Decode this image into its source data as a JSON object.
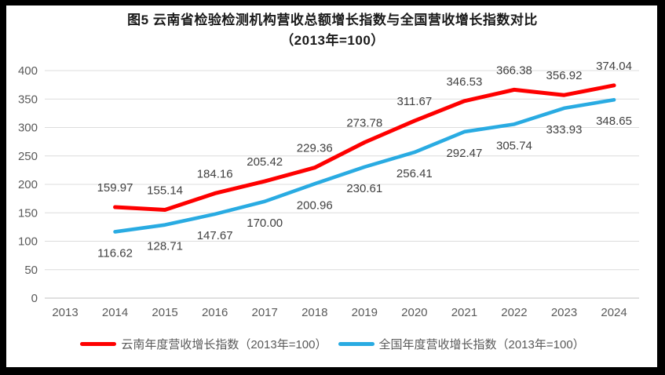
{
  "frame": {
    "border_color": "#000000",
    "panel_background": "#ffffff"
  },
  "chart_data": {
    "type": "line",
    "title": "图5  云南省检验检测机构营收总额增长指数与全国营收增长指数对比",
    "subtitle": "（2013年=100）",
    "categories": [
      "2013",
      "2014",
      "2015",
      "2016",
      "2017",
      "2018",
      "2019",
      "2020",
      "2021",
      "2022",
      "2023",
      "2024"
    ],
    "series": [
      {
        "name": "云南年度营收增长指数（2013年=100）",
        "color": "#fe0000",
        "label_position": "above",
        "values": [
          null,
          159.97,
          155.14,
          184.16,
          205.42,
          229.36,
          273.78,
          311.67,
          346.53,
          366.38,
          356.92,
          374.04
        ]
      },
      {
        "name": "全国年度营收增长指数（2013年=100）",
        "color": "#29abe2",
        "label_position": "below",
        "values": [
          null,
          116.62,
          128.71,
          147.67,
          170.0,
          200.96,
          230.61,
          256.41,
          292.47,
          305.74,
          333.93,
          348.65
        ]
      }
    ],
    "xlabel": "",
    "ylabel": "",
    "ylim": [
      0,
      400
    ],
    "ytick_step": 50,
    "yticks": [
      0,
      50,
      100,
      150,
      200,
      250,
      300,
      350,
      400
    ],
    "grid": true,
    "legend_position": "bottom",
    "colors": {
      "gridline": "#dcdcdc",
      "axis_line": "#c0c0c0",
      "tick_label": "#595959",
      "data_label": "#404040",
      "title_text": "#1a1a1a"
    }
  }
}
